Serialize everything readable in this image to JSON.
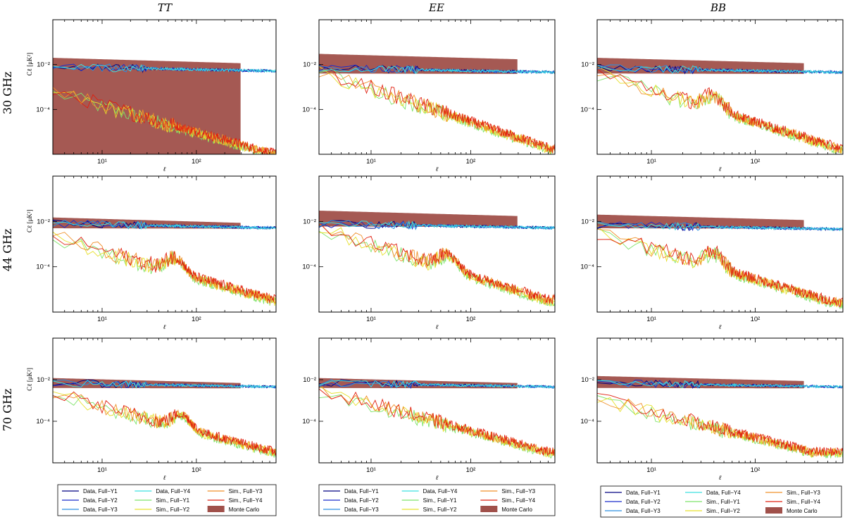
{
  "figure": {
    "column_titles": [
      "TT",
      "EE",
      "BB"
    ],
    "row_titles": [
      "30 GHz",
      "44 GHz",
      "70 GHz"
    ]
  },
  "colors": {
    "Data, Full−Y1": "#000080",
    "Data, Full−Y2": "#1a2fcc",
    "Data, Full−Y3": "#2a8fe0",
    "Data, Full−Y4": "#3ce0e0",
    "Sim., Full−Y1": "#7ee36a",
    "Sim., Full−Y2": "#e6e02a",
    "Sim., Full−Y3": "#f0902a",
    "Sim., Full−Y4": "#e02010",
    "Monte Carlo": "#a0504a"
  },
  "legend": {
    "entries": [
      {
        "label": "Data, Full−Y1",
        "kind": "line"
      },
      {
        "label": "Data, Full−Y2",
        "kind": "line"
      },
      {
        "label": "Data, Full−Y3",
        "kind": "line"
      },
      {
        "label": "Data, Full−Y4",
        "kind": "line"
      },
      {
        "label": "Sim., Full−Y1",
        "kind": "line"
      },
      {
        "label": "Sim., Full−Y2",
        "kind": "line"
      },
      {
        "label": "Sim., Full−Y3",
        "kind": "line"
      },
      {
        "label": "Sim., Full−Y4",
        "kind": "line"
      },
      {
        "label": "Monte Carlo",
        "kind": "patch"
      }
    ]
  },
  "chart_data": [
    {
      "type": "line",
      "title": "TT",
      "freq": "30 GHz",
      "xlabel": "ℓ",
      "ylabel": "Cℓ [μK²]",
      "xscale": "log",
      "yscale": "log",
      "xlim": [
        3,
        700
      ],
      "ylim": [
        1e-06,
        1
      ],
      "xticks": [
        {
          "value": 10,
          "label": "10¹"
        },
        {
          "value": 100,
          "label": "10²"
        }
      ],
      "yticks": [
        {
          "value": 0.01,
          "label": "10⁻²"
        },
        {
          "value": 0.0001,
          "label": "10⁻⁴"
        }
      ],
      "data_level": 0.008,
      "sim_start": 0.0006,
      "sim_end": 1e-06,
      "sim_slope": 1.2,
      "bump_at": 0,
      "band_top": 0.02,
      "band_bottom": 1e-06,
      "band_end": 300
    },
    {
      "type": "line",
      "title": "EE",
      "freq": "30 GHz",
      "xlabel": "ℓ",
      "ylabel": "",
      "xscale": "log",
      "yscale": "log",
      "xlim": [
        3,
        700
      ],
      "ylim": [
        1e-06,
        1
      ],
      "xticks": [
        {
          "value": 10,
          "label": "10¹"
        },
        {
          "value": 100,
          "label": "10²"
        }
      ],
      "yticks": [
        {
          "value": 0.01,
          "label": "10⁻²"
        },
        {
          "value": 0.0001,
          "label": "10⁻⁴"
        }
      ],
      "data_level": 0.007,
      "sim_start": 0.005,
      "sim_end": 1.5e-06,
      "sim_slope": 1.5,
      "bump_at": 0,
      "band_top": 0.03,
      "band_bottom": 0.004,
      "band_end": 300
    },
    {
      "type": "line",
      "title": "BB",
      "freq": "30 GHz",
      "xlabel": "ℓ",
      "ylabel": "",
      "xscale": "log",
      "yscale": "log",
      "xlim": [
        3,
        700
      ],
      "ylim": [
        1e-06,
        1
      ],
      "xticks": [
        {
          "value": 10,
          "label": "10¹"
        },
        {
          "value": 100,
          "label": "10²"
        }
      ],
      "yticks": [
        {
          "value": 0.01,
          "label": "10⁻²"
        },
        {
          "value": 0.0001,
          "label": "10⁻⁴"
        }
      ],
      "data_level": 0.007,
      "sim_start": 0.004,
      "sim_end": 1.2e-06,
      "sim_slope": 1.45,
      "bump_at": 40,
      "band_top": 0.02,
      "band_bottom": 0.004,
      "band_end": 300
    },
    {
      "type": "line",
      "title": "TT",
      "freq": "44 GHz",
      "xlabel": "ℓ",
      "ylabel": "Cℓ [μK²]",
      "xscale": "log",
      "yscale": "log",
      "xlim": [
        3,
        700
      ],
      "ylim": [
        1e-06,
        1
      ],
      "xticks": [
        {
          "value": 10,
          "label": "10¹"
        },
        {
          "value": 100,
          "label": "10²"
        }
      ],
      "yticks": [
        {
          "value": 0.01,
          "label": "10⁻²"
        },
        {
          "value": 0.0001,
          "label": "10⁻⁴"
        }
      ],
      "data_level": 0.008,
      "sim_start": 0.002,
      "sim_end": 2.5e-06,
      "sim_slope": 1.2,
      "bump_at": 60,
      "band_top": 0.015,
      "band_bottom": 0.005,
      "band_end": 300
    },
    {
      "type": "line",
      "title": "EE",
      "freq": "44 GHz",
      "xlabel": "ℓ",
      "ylabel": "",
      "xscale": "log",
      "yscale": "log",
      "xlim": [
        3,
        700
      ],
      "ylim": [
        1e-06,
        1
      ],
      "xticks": [
        {
          "value": 10,
          "label": "10¹"
        },
        {
          "value": 100,
          "label": "10²"
        }
      ],
      "yticks": [
        {
          "value": 0.01,
          "label": "10⁻²"
        },
        {
          "value": 0.0001,
          "label": "10⁻⁴"
        }
      ],
      "data_level": 0.008,
      "sim_start": 0.005,
      "sim_end": 3e-06,
      "sim_slope": 1.4,
      "bump_at": 60,
      "band_top": 0.03,
      "band_bottom": 0.006,
      "band_end": 300
    },
    {
      "type": "line",
      "title": "BB",
      "freq": "44 GHz",
      "xlabel": "ℓ",
      "ylabel": "",
      "xscale": "log",
      "yscale": "log",
      "xlim": [
        3,
        700
      ],
      "ylim": [
        1e-06,
        1
      ],
      "xticks": [
        {
          "value": 10,
          "label": "10¹"
        },
        {
          "value": 100,
          "label": "10²"
        }
      ],
      "yticks": [
        {
          "value": 0.01,
          "label": "10⁻²"
        },
        {
          "value": 0.0001,
          "label": "10⁻⁴"
        }
      ],
      "data_level": 0.007,
      "sim_start": 0.003,
      "sim_end": 2.5e-06,
      "sim_slope": 1.35,
      "bump_at": 40,
      "band_top": 0.02,
      "band_bottom": 0.005,
      "band_end": 300
    },
    {
      "type": "line",
      "title": "TT",
      "freq": "70 GHz",
      "xlabel": "ℓ",
      "ylabel": "Cℓ [μK²]",
      "xscale": "log",
      "yscale": "log",
      "xlim": [
        3,
        700
      ],
      "ylim": [
        1e-06,
        1
      ],
      "xticks": [
        {
          "value": 10,
          "label": "10¹"
        },
        {
          "value": 100,
          "label": "10²"
        }
      ],
      "yticks": [
        {
          "value": 0.01,
          "label": "10⁻²"
        },
        {
          "value": 0.0001,
          "label": "10⁻⁴"
        }
      ],
      "data_level": 0.007,
      "sim_start": 0.002,
      "sim_end": 2.5e-06,
      "sim_slope": 1.2,
      "bump_at": 70,
      "band_top": 0.012,
      "band_bottom": 0.004,
      "band_end": 300
    },
    {
      "type": "line",
      "title": "EE",
      "freq": "70 GHz",
      "xlabel": "ℓ",
      "ylabel": "",
      "xscale": "log",
      "yscale": "log",
      "xlim": [
        3,
        700
      ],
      "ylim": [
        1e-06,
        1
      ],
      "xticks": [
        {
          "value": 10,
          "label": "10¹"
        },
        {
          "value": 100,
          "label": "10²"
        }
      ],
      "yticks": [
        {
          "value": 0.01,
          "label": "10⁻²"
        },
        {
          "value": 0.0001,
          "label": "10⁻⁴"
        }
      ],
      "data_level": 0.007,
      "sim_start": 0.003,
      "sim_end": 3e-06,
      "sim_slope": 1.3,
      "bump_at": 0,
      "band_top": 0.012,
      "band_bottom": 0.004,
      "band_end": 300
    },
    {
      "type": "line",
      "title": "BB",
      "freq": "70 GHz",
      "xlabel": "ℓ",
      "ylabel": "",
      "xscale": "log",
      "yscale": "log",
      "xlim": [
        3,
        700
      ],
      "ylim": [
        1e-06,
        1
      ],
      "xticks": [
        {
          "value": 10,
          "label": "10¹"
        },
        {
          "value": 100,
          "label": "10²"
        }
      ],
      "yticks": [
        {
          "value": 0.01,
          "label": "10⁻²"
        },
        {
          "value": 0.0001,
          "label": "10⁻⁴"
        }
      ],
      "data_level": 0.007,
      "sim_start": 0.0012,
      "sim_end": 3e-06,
      "sim_slope": 1.25,
      "bump_at": 0,
      "band_top": 0.015,
      "band_bottom": 0.004,
      "band_end": 300
    }
  ]
}
